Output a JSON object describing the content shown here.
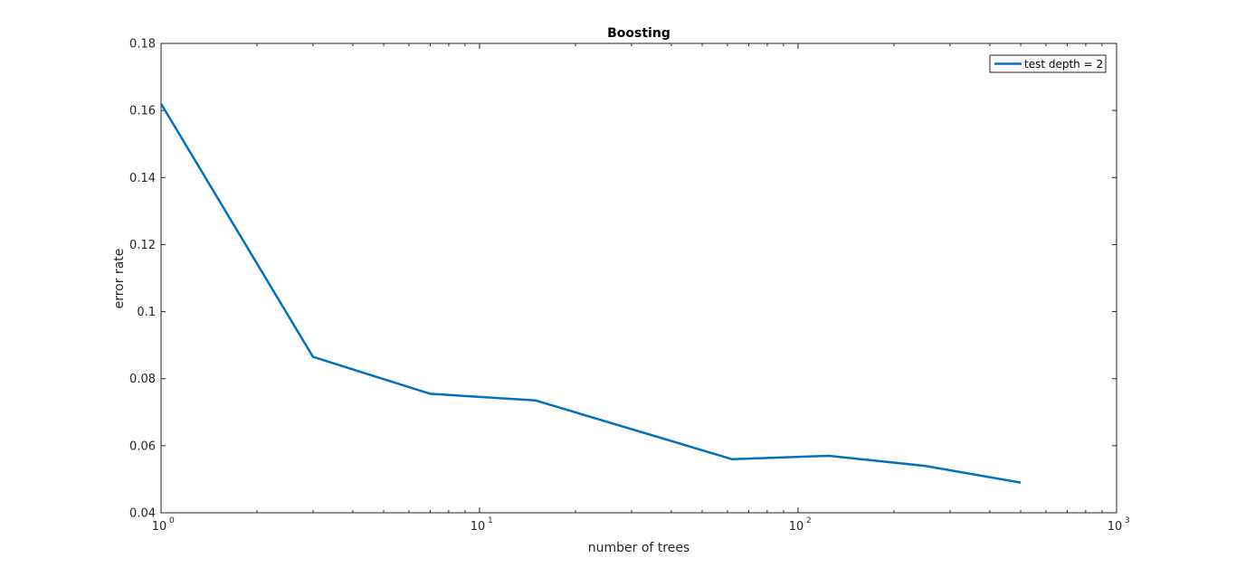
{
  "chart_data": {
    "type": "line",
    "title": "Boosting",
    "xlabel": "number of trees",
    "ylabel": "error rate",
    "xscale": "log",
    "xlim": [
      1,
      1000
    ],
    "ylim": [
      0.04,
      0.18
    ],
    "grid": false,
    "legend_position": "top-right",
    "x_tick_labels": [
      {
        "value": 1,
        "base": "10",
        "exp": "0"
      },
      {
        "value": 10,
        "base": "10",
        "exp": "1"
      },
      {
        "value": 100,
        "base": "10",
        "exp": "2"
      },
      {
        "value": 1000,
        "base": "10",
        "exp": "3"
      }
    ],
    "y_ticks": [
      0.04,
      0.06,
      0.08,
      0.1,
      0.12,
      0.14,
      0.16,
      0.18
    ],
    "y_tick_labels": [
      "0.04",
      "0.06",
      "0.08",
      "0.1",
      "0.12",
      "0.14",
      "0.16",
      "0.18"
    ],
    "series": [
      {
        "name": "test depth = 2",
        "color": "#0072BD",
        "x": [
          1,
          3,
          7,
          15,
          62,
          125,
          250,
          500
        ],
        "y": [
          0.162,
          0.0865,
          0.0755,
          0.0735,
          0.056,
          0.057,
          0.054,
          0.049
        ]
      }
    ]
  }
}
